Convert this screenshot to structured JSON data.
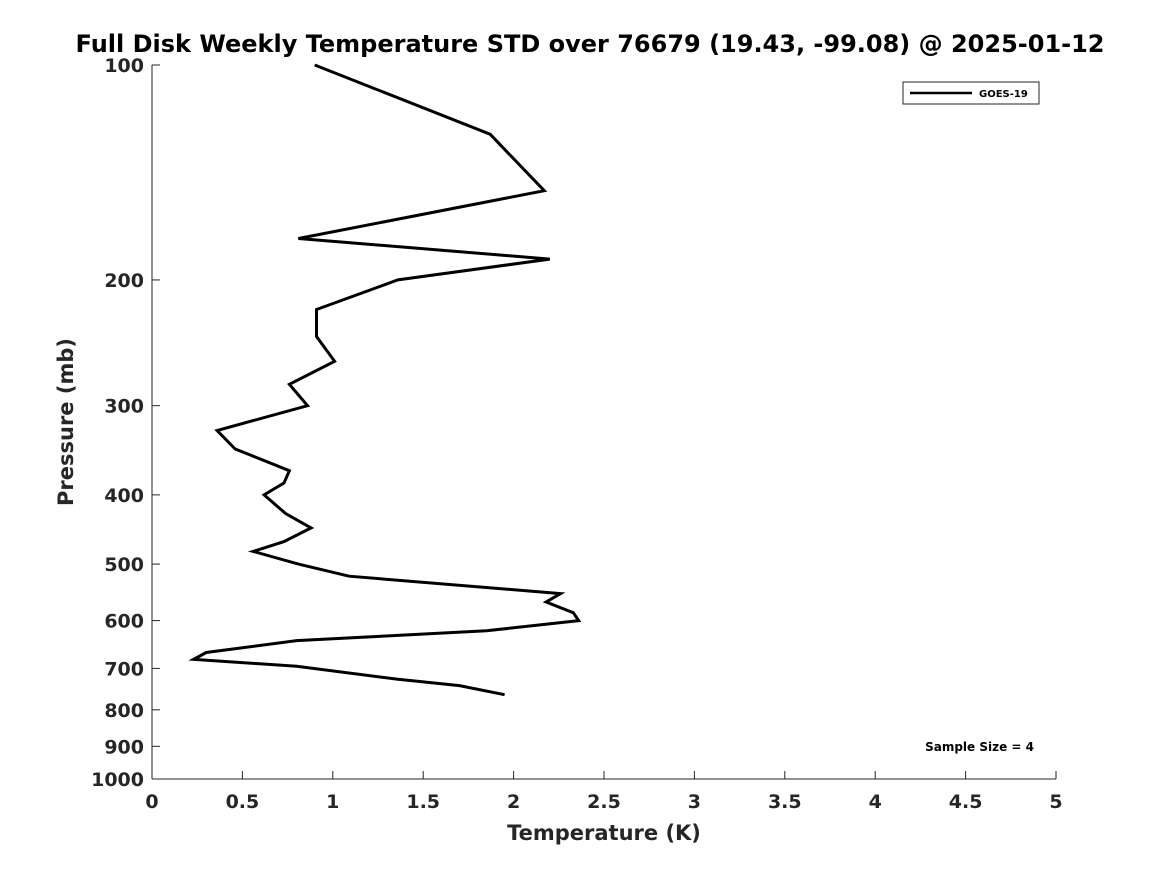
{
  "chart_data": {
    "type": "line",
    "title": "Full Disk Weekly Temperature STD over 76679 (19.43, -99.08) @ 2025-01-12",
    "xlabel": "Temperature (K)",
    "ylabel": "Pressure (mb)",
    "xlim": [
      0,
      5
    ],
    "ylim": [
      100,
      1000
    ],
    "y_scale": "log",
    "y_reversed": true,
    "grid": false,
    "legend_position": "top-right",
    "x_ticks": [
      "0",
      "0.5",
      "1",
      "1.5",
      "2",
      "2.5",
      "3",
      "3.5",
      "4",
      "4.5",
      "5"
    ],
    "x_tick_values": [
      0,
      0.5,
      1,
      1.5,
      2,
      2.5,
      3,
      3.5,
      4,
      4.5,
      5
    ],
    "y_ticks": [
      "100",
      "200",
      "300",
      "400",
      "500",
      "600",
      "700",
      "800",
      "900",
      "1000"
    ],
    "y_tick_values": [
      100,
      200,
      300,
      400,
      500,
      600,
      700,
      800,
      900,
      1000
    ],
    "series": [
      {
        "name": "GOES-19",
        "color": "#000000",
        "points": [
          [
            0.9,
            100
          ],
          [
            1.87,
            125
          ],
          [
            2.17,
            150
          ],
          [
            0.81,
            175
          ],
          [
            2.2,
            187
          ],
          [
            1.36,
            200
          ],
          [
            0.91,
            220
          ],
          [
            0.91,
            240
          ],
          [
            1.01,
            260
          ],
          [
            0.76,
            280
          ],
          [
            0.86,
            300
          ],
          [
            0.36,
            325
          ],
          [
            0.46,
            345
          ],
          [
            0.76,
            370
          ],
          [
            0.73,
            385
          ],
          [
            0.62,
            400
          ],
          [
            0.74,
            425
          ],
          [
            0.88,
            445
          ],
          [
            0.73,
            465
          ],
          [
            0.56,
            480
          ],
          [
            0.81,
            500
          ],
          [
            1.09,
            520
          ],
          [
            2.26,
            550
          ],
          [
            2.18,
            565
          ],
          [
            2.33,
            585
          ],
          [
            2.36,
            600
          ],
          [
            1.85,
            620
          ],
          [
            0.8,
            640
          ],
          [
            0.3,
            665
          ],
          [
            0.23,
            680
          ],
          [
            0.8,
            695
          ],
          [
            1.36,
            725
          ],
          [
            1.7,
            740
          ],
          [
            1.95,
            762
          ]
        ]
      }
    ],
    "annotations": [
      "Sample Size = 4"
    ]
  }
}
